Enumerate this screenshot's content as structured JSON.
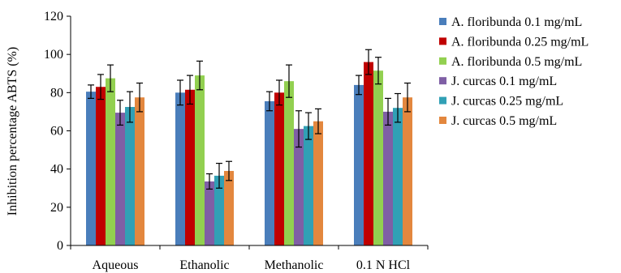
{
  "chart_data": {
    "type": "bar",
    "title": "",
    "xlabel": "",
    "ylabel": "Inhibition percentage ABTS (%)",
    "ylim": [
      0,
      120
    ],
    "yticks": [
      0,
      20,
      40,
      60,
      80,
      100,
      120
    ],
    "grid": false,
    "legend_position": "right",
    "categories": [
      "Aqueous",
      "Ethanolic",
      "Methanolic",
      "0.1 N HCl"
    ],
    "series": [
      {
        "name": "A. floribunda 0.1 mg/mL",
        "color": "#4A7EBB",
        "values": [
          80.5,
          80.0,
          75.5,
          84.0
        ],
        "errors": [
          3.5,
          6.5,
          5.0,
          5.0
        ]
      },
      {
        "name": "A. floribunda 0.25 mg/mL",
        "color": "#C00000",
        "values": [
          83.0,
          81.5,
          80.0,
          96.0
        ],
        "errors": [
          6.5,
          7.5,
          6.5,
          6.5
        ]
      },
      {
        "name": "A. floribunda 0.5 mg/mL",
        "color": "#92D050",
        "values": [
          87.5,
          89.0,
          86.0,
          91.5
        ],
        "errors": [
          7.0,
          7.5,
          8.5,
          7.0
        ]
      },
      {
        "name": "J. curcas 0.1 mg/mL",
        "color": "#7F5FA5",
        "values": [
          69.5,
          33.5,
          61.0,
          70.0
        ],
        "errors": [
          6.5,
          4.0,
          9.5,
          7.0
        ]
      },
      {
        "name": "J. curcas 0.25 mg/mL",
        "color": "#31A0B5",
        "values": [
          72.5,
          36.5,
          62.5,
          72.0
        ],
        "errors": [
          8.0,
          6.5,
          7.0,
          7.5
        ]
      },
      {
        "name": "J. curcas 0.5 mg/mL",
        "color": "#E3873E",
        "values": [
          77.5,
          39.0,
          65.0,
          77.5
        ],
        "errors": [
          7.5,
          5.0,
          6.5,
          7.5
        ]
      }
    ]
  }
}
